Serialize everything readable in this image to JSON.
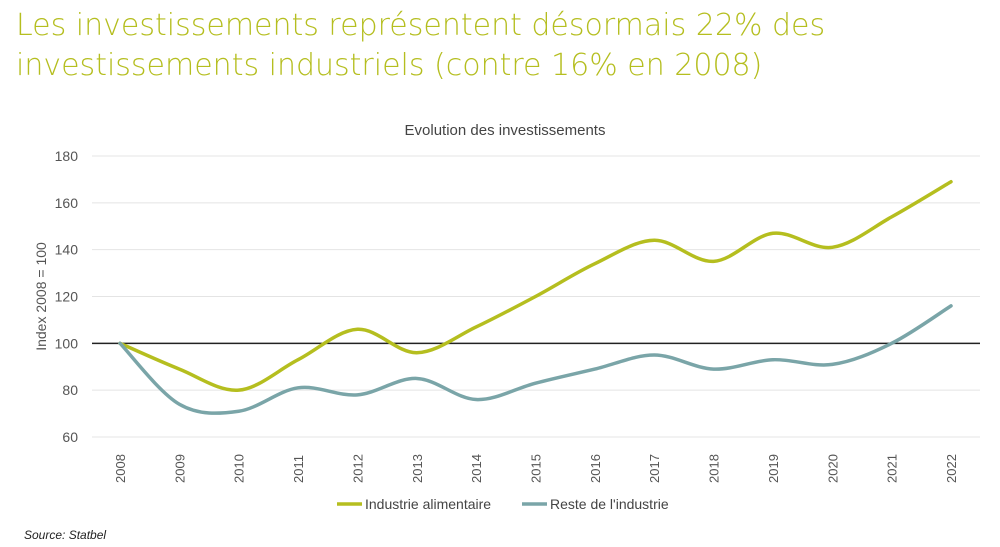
{
  "title": "Les investissements représentent désormais 22% des investissements industriels (contre 16% en 2008)",
  "source": "Source: Statbel",
  "chart_data": {
    "type": "line",
    "title": "Evolution des investissements",
    "xlabel": "",
    "ylabel": "Index 2008 = 100",
    "ylim": [
      60,
      180
    ],
    "yticks": [
      60,
      80,
      100,
      120,
      140,
      160,
      180
    ],
    "grid": true,
    "reference_line": 100,
    "legend_position": "bottom",
    "categories": [
      "2008",
      "2009",
      "2010",
      "2011",
      "2012",
      "2013",
      "2014",
      "2015",
      "2016",
      "2017",
      "2018",
      "2019",
      "2020",
      "2021",
      "2022"
    ],
    "series": [
      {
        "name": "Industrie alimentaire",
        "color": "#b5be1f",
        "values": [
          100,
          89,
          80,
          93,
          106,
          96,
          107,
          120,
          134,
          144,
          135,
          147,
          141,
          154,
          169
        ]
      },
      {
        "name": "Reste de l'industrie",
        "color": "#7aa5a8",
        "values": [
          100,
          74,
          71,
          81,
          78,
          85,
          76,
          83,
          89,
          95,
          89,
          93,
          91,
          100,
          116
        ]
      }
    ]
  }
}
